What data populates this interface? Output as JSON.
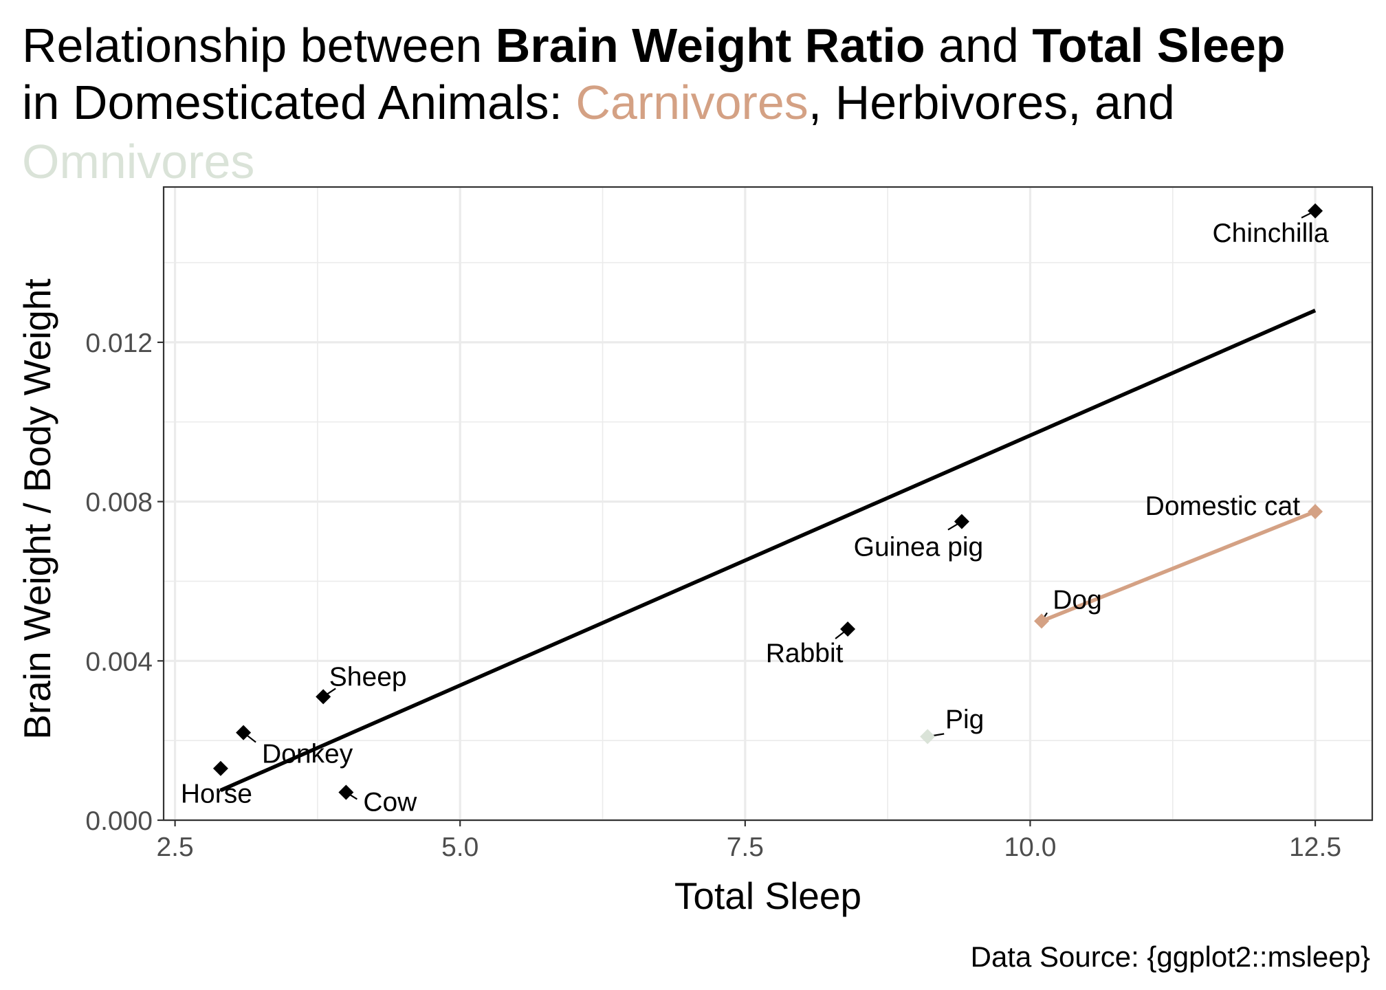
{
  "title": {
    "l1_a": "Relationship between ",
    "l1_b": "Brain Weight Ratio",
    "l1_c": " and ",
    "l1_d": "Total Sleep",
    "l2_a": "in Domesticated Animals: ",
    "l2_b": "Carnivores",
    "l2_c": ", Herbivores, and",
    "l3_a": "Omnivores"
  },
  "caption": "Data Source: {ggplot2::msleep}",
  "colors": {
    "carni": "#D4A184",
    "herbi": "#000000",
    "omni": "#DAE3D8",
    "grid": "#EBEBEB",
    "panel_border": "#333333",
    "axis_text": "#4D4D4D"
  },
  "chart_data": {
    "type": "scatter",
    "xlabel": "Total Sleep",
    "ylabel": "Brain Weight / Body Weight",
    "xlim": [
      2.4,
      13.0
    ],
    "ylim": [
      0.0,
      0.0159
    ],
    "x_ticks": [
      "2.5",
      "5.0",
      "7.5",
      "10.0",
      "12.5"
    ],
    "y_ticks": [
      "0.000",
      "0.004",
      "0.008",
      "0.012"
    ],
    "grid": true,
    "legend": "none",
    "points": [
      {
        "name": "Chinchilla",
        "group": "herbi",
        "x": 12.5,
        "y": 0.0153
      },
      {
        "name": "Domestic cat",
        "group": "carni",
        "x": 12.5,
        "y": 0.00775
      },
      {
        "name": "Dog",
        "group": "carni",
        "x": 10.1,
        "y": 0.005
      },
      {
        "name": "Guinea pig",
        "group": "herbi",
        "x": 9.4,
        "y": 0.0075
      },
      {
        "name": "Rabbit",
        "group": "herbi",
        "x": 8.4,
        "y": 0.0048
      },
      {
        "name": "Pig",
        "group": "omni",
        "x": 9.1,
        "y": 0.0021
      },
      {
        "name": "Sheep",
        "group": "herbi",
        "x": 3.8,
        "y": 0.0031
      },
      {
        "name": "Donkey",
        "group": "herbi",
        "x": 3.1,
        "y": 0.0022
      },
      {
        "name": "Horse",
        "group": "herbi",
        "x": 2.9,
        "y": 0.0013
      },
      {
        "name": "Cow",
        "group": "herbi",
        "x": 4.0,
        "y": 0.0007
      }
    ],
    "trend_lines": [
      {
        "group": "herbi",
        "x": [
          2.9,
          12.5
        ],
        "y": [
          0.00075,
          0.0128
        ]
      },
      {
        "group": "carni",
        "x": [
          10.1,
          12.5
        ],
        "y": [
          0.005,
          0.00775
        ]
      }
    ]
  }
}
